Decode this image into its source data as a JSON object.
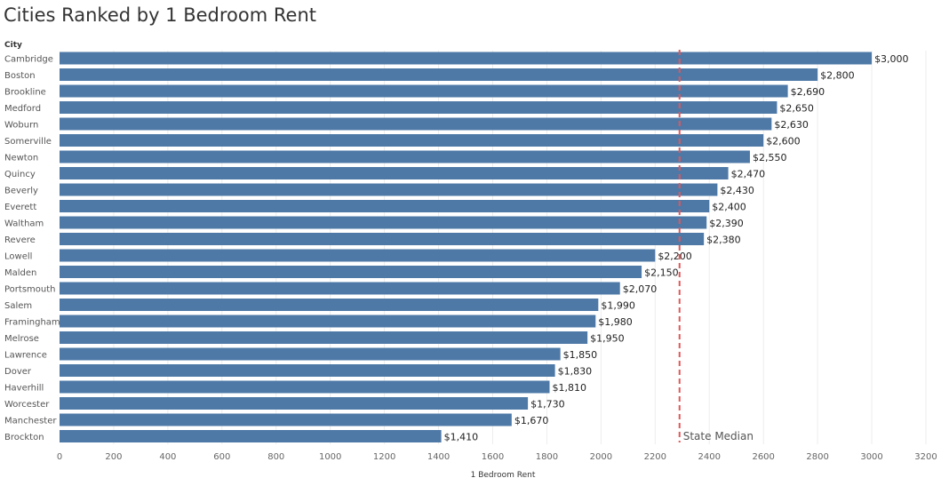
{
  "chart_data": {
    "type": "bar",
    "orientation": "horizontal",
    "title": "Cities Ranked by 1 Bedroom Rent",
    "row_header": "City",
    "xlabel": "1 Bedroom Rent",
    "xlim": [
      0,
      3200
    ],
    "xticks": [
      0,
      200,
      400,
      600,
      800,
      1000,
      1200,
      1400,
      1600,
      1800,
      2000,
      2200,
      2400,
      2600,
      2800,
      3000,
      3200
    ],
    "bar_color": "#4e79a7",
    "reference_line": {
      "label": "State Median",
      "value": 2290,
      "color": "#e15759"
    },
    "grid": true,
    "categories": [
      "Cambridge",
      "Boston",
      "Brookline",
      "Medford",
      "Woburn",
      "Somerville",
      "Newton",
      "Quincy",
      "Beverly",
      "Everett",
      "Waltham",
      "Revere",
      "Lowell",
      "Malden",
      "Portsmouth",
      "Salem",
      "Framingham",
      "Melrose",
      "Lawrence",
      "Dover",
      "Haverhill",
      "Worcester",
      "Manchester",
      "Brockton"
    ],
    "values": [
      3000,
      2800,
      2690,
      2650,
      2630,
      2600,
      2550,
      2470,
      2430,
      2400,
      2390,
      2380,
      2200,
      2150,
      2070,
      1990,
      1980,
      1950,
      1850,
      1830,
      1810,
      1730,
      1670,
      1410
    ],
    "value_labels": [
      "$3,000",
      "$2,800",
      "$2,690",
      "$2,650",
      "$2,630",
      "$2,600",
      "$2,550",
      "$2,470",
      "$2,430",
      "$2,400",
      "$2,390",
      "$2,380",
      "$2,200",
      "$2,150",
      "$2,070",
      "$1,990",
      "$1,980",
      "$1,950",
      "$1,850",
      "$1,830",
      "$1,810",
      "$1,730",
      "$1,670",
      "$1,410"
    ]
  }
}
